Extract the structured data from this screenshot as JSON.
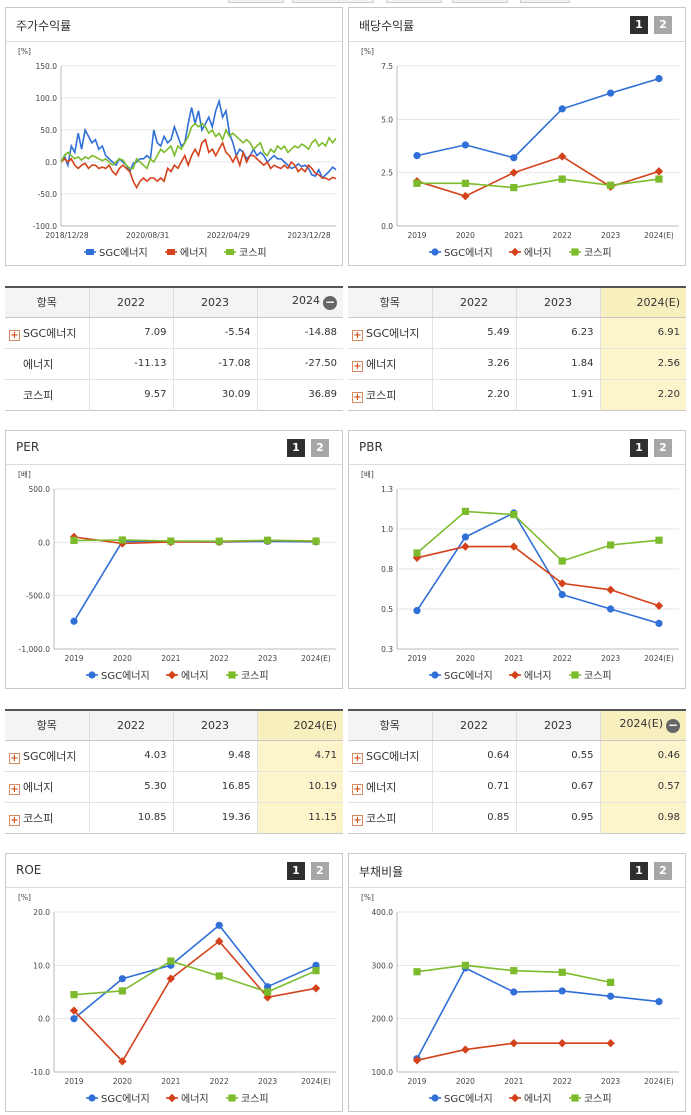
{
  "top_tabs": [
    "",
    "",
    "",
    "",
    ""
  ],
  "panels": {
    "stock_return": {
      "title": "주가수익률",
      "unit": "[%]",
      "chart_data": {
        "type": "line",
        "ylim": [
          -100,
          150
        ],
        "yticks": [
          "150.0",
          "100.0",
          "50.0",
          "0.0",
          "-50.0",
          "-100.0"
        ],
        "xticks": [
          "2018/12/28",
          "2020/08/31",
          "2022/04/29",
          "2023/12/28"
        ],
        "series": [
          {
            "name": "SGC에너지",
            "color": "#2f6fd6",
            "values": [
              0,
              10,
              -5,
              25,
              15,
              45,
              20,
              50,
              40,
              30,
              35,
              20,
              25,
              10,
              5,
              0,
              -5,
              5,
              0,
              -5,
              -15,
              -2,
              0,
              5,
              5,
              10,
              5,
              50,
              30,
              25,
              40,
              30,
              35,
              55,
              40,
              25,
              30,
              60,
              85,
              60,
              80,
              50,
              60,
              70,
              55,
              80,
              95,
              70,
              80,
              45,
              30,
              10,
              20,
              15,
              5,
              10,
              20,
              10,
              15,
              10,
              0,
              5,
              10,
              5,
              5,
              0,
              -5,
              -10,
              -8,
              -3,
              -7,
              -5,
              -10,
              -20,
              -22,
              -12,
              -25,
              -20,
              -15,
              -8,
              -12
            ]
          },
          {
            "name": "에너지",
            "color": "#d4421b",
            "values": [
              0,
              5,
              0,
              5,
              -5,
              -10,
              -5,
              -2,
              -10,
              -5,
              -5,
              -10,
              -8,
              -10,
              -5,
              -15,
              -20,
              -10,
              -5,
              -10,
              -15,
              -30,
              -40,
              -30,
              -25,
              -30,
              -25,
              -25,
              -30,
              -25,
              -30,
              -10,
              -15,
              -5,
              -10,
              0,
              10,
              -5,
              10,
              20,
              10,
              30,
              35,
              15,
              20,
              10,
              20,
              30,
              15,
              10,
              0,
              10,
              -5,
              15,
              0,
              10,
              10,
              5,
              0,
              -5,
              0,
              -10,
              -5,
              -8,
              -10,
              -5,
              -10,
              0,
              -5,
              -15,
              -10,
              -15,
              -5,
              -10,
              -18,
              -20,
              -25,
              -25,
              -28,
              -24,
              -26
            ]
          },
          {
            "name": "코스피",
            "color": "#7cbb2c",
            "values": [
              0,
              10,
              15,
              10,
              5,
              8,
              3,
              8,
              5,
              10,
              8,
              5,
              2,
              5,
              0,
              -5,
              0,
              5,
              3,
              -5,
              -10,
              -10,
              5,
              0,
              -5,
              -10,
              5,
              0,
              10,
              20,
              15,
              20,
              25,
              10,
              25,
              20,
              30,
              40,
              55,
              60,
              55,
              60,
              55,
              45,
              50,
              40,
              45,
              35,
              50,
              40,
              45,
              40,
              35,
              30,
              35,
              30,
              20,
              25,
              30,
              15,
              10,
              20,
              15,
              25,
              20,
              25,
              15,
              20,
              25,
              22,
              28,
              25,
              20,
              30,
              35,
              25,
              30,
              25,
              38,
              30,
              37
            ]
          }
        ]
      }
    },
    "dividend_yield": {
      "title": "배당수익률",
      "unit": "[%]",
      "pages": [
        "1",
        "2"
      ],
      "chart_data": {
        "type": "line",
        "categories": [
          "2019",
          "2020",
          "2021",
          "2022",
          "2023",
          "2024(E)"
        ],
        "ylim": [
          0,
          7.5
        ],
        "yticks": [
          "7.5",
          "5.0",
          "2.5",
          "0.0"
        ],
        "series": [
          {
            "name": "SGC에너지",
            "color": "#2f6fd6",
            "marker": "circle",
            "values": [
              3.3,
              3.8,
              3.2,
              5.49,
              6.23,
              6.91
            ]
          },
          {
            "name": "에너지",
            "color": "#d4421b",
            "marker": "diamond",
            "values": [
              2.1,
              1.4,
              2.5,
              3.26,
              1.84,
              2.56
            ]
          },
          {
            "name": "코스피",
            "color": "#7cbb2c",
            "marker": "square",
            "values": [
              2.0,
              2.0,
              1.8,
              2.2,
              1.91,
              2.2
            ]
          }
        ]
      }
    },
    "per": {
      "title": "PER",
      "unit": "[배]",
      "pages": [
        "1",
        "2"
      ],
      "chart_data": {
        "type": "line",
        "categories": [
          "2019",
          "2020",
          "2021",
          "2022",
          "2023",
          "2024(E)"
        ],
        "ylim": [
          -1000,
          500
        ],
        "yticks": [
          "500.0",
          "0.0",
          "-500.0",
          "-1,000.0"
        ],
        "series": [
          {
            "name": "SGC에너지",
            "color": "#2f6fd6",
            "marker": "circle",
            "values": [
              -740,
              10,
              5,
              4.03,
              9.48,
              4.71
            ]
          },
          {
            "name": "에너지",
            "color": "#d4421b",
            "marker": "diamond",
            "values": [
              50,
              -10,
              3,
              5.3,
              16.85,
              10.19
            ]
          },
          {
            "name": "코스피",
            "color": "#7cbb2c",
            "marker": "square",
            "values": [
              18,
              22,
              12,
              10.85,
              19.36,
              11.15
            ]
          }
        ]
      }
    },
    "pbr": {
      "title": "PBR",
      "unit": "[배]",
      "pages": [
        "1",
        "2"
      ],
      "chart_data": {
        "type": "line",
        "categories": [
          "2019",
          "2020",
          "2021",
          "2022",
          "2023",
          "2024(E)"
        ],
        "ylim": [
          0.3,
          1.3
        ],
        "yticks": [
          "1.3",
          "1.0",
          "0.8",
          "0.5",
          "0.3"
        ],
        "series": [
          {
            "name": "SGC에너지",
            "color": "#2f6fd6",
            "marker": "circle",
            "values": [
              0.54,
              1.0,
              1.15,
              0.64,
              0.55,
              0.46
            ]
          },
          {
            "name": "에너지",
            "color": "#d4421b",
            "marker": "diamond",
            "values": [
              0.87,
              0.94,
              0.94,
              0.71,
              0.67,
              0.57
            ]
          },
          {
            "name": "코스피",
            "color": "#7cbb2c",
            "marker": "square",
            "values": [
              0.9,
              1.16,
              1.14,
              0.85,
              0.95,
              0.98
            ]
          }
        ]
      }
    },
    "roe": {
      "title": "ROE",
      "unit": "[%]",
      "pages": [
        "1",
        "2"
      ],
      "chart_data": {
        "type": "line",
        "categories": [
          "2019",
          "2020",
          "2021",
          "2022",
          "2023",
          "2024(E)"
        ],
        "ylim": [
          -10,
          20
        ],
        "yticks": [
          "20.0",
          "10.0",
          "0.0",
          "-10.0"
        ],
        "series": [
          {
            "name": "SGC에너지",
            "color": "#2f6fd6",
            "marker": "circle",
            "values": [
              0,
              7.5,
              10,
              17.5,
              6,
              10
            ]
          },
          {
            "name": "에너지",
            "color": "#d4421b",
            "marker": "diamond",
            "values": [
              1.5,
              -8,
              7.5,
              14.5,
              4,
              5.7
            ]
          },
          {
            "name": "코스피",
            "color": "#7cbb2c",
            "marker": "square",
            "values": [
              4.5,
              5.2,
              10.8,
              8,
              5,
              9
            ]
          }
        ]
      }
    },
    "debt_ratio": {
      "title": "부채비율",
      "unit": "[%]",
      "pages": [
        "1",
        "2"
      ],
      "chart_data": {
        "type": "line",
        "categories": [
          "2019",
          "2020",
          "2021",
          "2022",
          "2023",
          "2024(E)"
        ],
        "ylim": [
          100,
          400
        ],
        "yticks": [
          "400.0",
          "300.0",
          "200.0",
          "100.0"
        ],
        "series": [
          {
            "name": "SGC에너지",
            "color": "#2f6fd6",
            "marker": "circle",
            "values": [
              125,
              295,
              250,
              252,
              242,
              232
            ]
          },
          {
            "name": "에너지",
            "color": "#d4421b",
            "marker": "diamond",
            "values": [
              122,
              142,
              154,
              154,
              154,
              null
            ]
          },
          {
            "name": "코스피",
            "color": "#7cbb2c",
            "marker": "square",
            "values": [
              288,
              300,
              290,
              287,
              268,
              null
            ]
          }
        ]
      }
    }
  },
  "tables": {
    "stock_return": {
      "header": [
        "항목",
        "2022",
        "2023",
        "2024"
      ],
      "rows": [
        {
          "label": "SGC에너지",
          "plus": true,
          "values": [
            "7.09",
            "-5.54",
            "-14.88"
          ]
        },
        {
          "label": "에너지",
          "plus": false,
          "values": [
            "-11.13",
            "-17.08",
            "-27.50"
          ]
        },
        {
          "label": "코스피",
          "plus": false,
          "values": [
            "9.57",
            "30.09",
            "36.89"
          ]
        }
      ]
    },
    "dividend_yield": {
      "header": [
        "항목",
        "2022",
        "2023",
        "2024(E)"
      ],
      "rows": [
        {
          "label": "SGC에너지",
          "plus": true,
          "values": [
            "5.49",
            "6.23",
            "6.91"
          ]
        },
        {
          "label": "에너지",
          "plus": true,
          "values": [
            "3.26",
            "1.84",
            "2.56"
          ]
        },
        {
          "label": "코스피",
          "plus": true,
          "values": [
            "2.20",
            "1.91",
            "2.20"
          ]
        }
      ]
    },
    "per": {
      "header": [
        "항목",
        "2022",
        "2023",
        "2024(E)"
      ],
      "rows": [
        {
          "label": "SGC에너지",
          "plus": true,
          "values": [
            "4.03",
            "9.48",
            "4.71"
          ]
        },
        {
          "label": "에너지",
          "plus": true,
          "values": [
            "5.30",
            "16.85",
            "10.19"
          ]
        },
        {
          "label": "코스피",
          "plus": true,
          "values": [
            "10.85",
            "19.36",
            "11.15"
          ]
        }
      ]
    },
    "pbr": {
      "header": [
        "항목",
        "2022",
        "2023",
        "2024(E)"
      ],
      "rows": [
        {
          "label": "SGC에너지",
          "plus": true,
          "values": [
            "0.64",
            "0.55",
            "0.46"
          ]
        },
        {
          "label": "에너지",
          "plus": true,
          "values": [
            "0.71",
            "0.67",
            "0.57"
          ]
        },
        {
          "label": "코스피",
          "plus": true,
          "values": [
            "0.85",
            "0.95",
            "0.98"
          ]
        }
      ]
    }
  }
}
